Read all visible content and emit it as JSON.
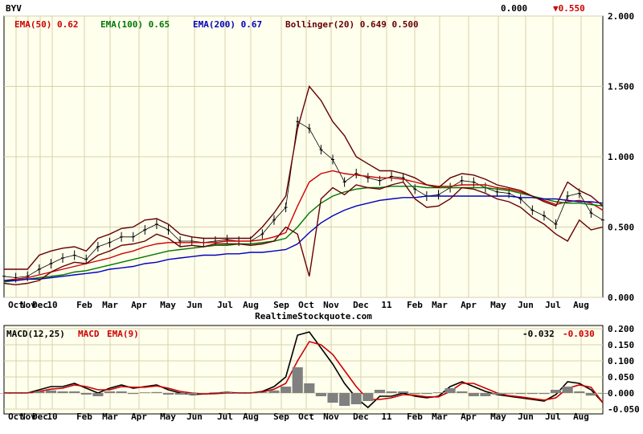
{
  "chart_data": [
    {
      "type": "line",
      "title": "BYV",
      "top_right": {
        "value": "0.000",
        "change": "▼0.550",
        "change_color": "#cc0000"
      },
      "legend": [
        {
          "label": "EMA(50) 0.62",
          "color": "#cc0000"
        },
        {
          "label": "EMA(100) 0.65",
          "color": "#007700"
        },
        {
          "label": "EMA(200) 0.67",
          "color": "#0000bb"
        },
        {
          "label": "Bollinger(20) 0.649 0.500",
          "color": "#660000"
        }
      ],
      "watermark": "RealtimeStockquote.com",
      "ylim": [
        0,
        2
      ],
      "yticks": [
        "2.000",
        "1.500",
        "1.000",
        "0.500",
        "0.000"
      ],
      "xticks": [
        "Oct",
        "Nov",
        "Dec",
        "10",
        "Feb",
        "Mar",
        "Apr",
        "May",
        "Jun",
        "Jul",
        "Aug",
        "Sep",
        "Oct",
        "Nov",
        "Dec",
        "11",
        "Feb",
        "Mar",
        "Apr",
        "May",
        "Jun",
        "Jul",
        "Aug"
      ],
      "x": [
        0,
        2,
        4,
        6,
        8,
        10,
        12,
        14,
        16,
        18,
        20,
        22,
        24,
        26,
        28,
        30,
        32,
        34,
        36,
        38,
        40,
        42,
        44,
        46,
        48,
        50,
        52,
        54,
        56,
        58,
        60,
        62,
        64,
        66,
        68,
        70,
        72,
        74,
        76,
        78,
        80,
        82,
        84,
        86,
        88,
        90,
        92,
        94,
        96,
        98,
        100,
        102
      ],
      "series": [
        {
          "role": "price",
          "color": "#000000",
          "values": [
            0.15,
            0.14,
            0.15,
            0.2,
            0.24,
            0.28,
            0.3,
            0.27,
            0.36,
            0.39,
            0.43,
            0.43,
            0.48,
            0.52,
            0.48,
            0.4,
            0.4,
            0.39,
            0.4,
            0.41,
            0.4,
            0.4,
            0.45,
            0.55,
            0.64,
            1.25,
            1.2,
            1.05,
            0.98,
            0.82,
            0.88,
            0.85,
            0.83,
            0.86,
            0.85,
            0.77,
            0.72,
            0.73,
            0.78,
            0.83,
            0.82,
            0.78,
            0.75,
            0.74,
            0.7,
            0.62,
            0.58,
            0.52,
            0.72,
            0.74,
            0.6,
            0.55
          ]
        },
        {
          "name": "EMA(50)",
          "color": "#cc0000",
          "values": [
            0.12,
            0.13,
            0.14,
            0.16,
            0.18,
            0.2,
            0.22,
            0.24,
            0.26,
            0.28,
            0.31,
            0.33,
            0.36,
            0.38,
            0.39,
            0.39,
            0.39,
            0.39,
            0.39,
            0.4,
            0.4,
            0.4,
            0.41,
            0.43,
            0.46,
            0.65,
            0.82,
            0.88,
            0.9,
            0.88,
            0.87,
            0.86,
            0.85,
            0.85,
            0.84,
            0.82,
            0.8,
            0.79,
            0.79,
            0.8,
            0.8,
            0.8,
            0.78,
            0.77,
            0.75,
            0.72,
            0.69,
            0.66,
            0.68,
            0.69,
            0.67,
            0.62
          ]
        },
        {
          "name": "EMA(100)",
          "color": "#007700",
          "values": [
            0.11,
            0.12,
            0.13,
            0.14,
            0.15,
            0.16,
            0.18,
            0.19,
            0.21,
            0.23,
            0.25,
            0.27,
            0.29,
            0.31,
            0.33,
            0.34,
            0.35,
            0.36,
            0.37,
            0.37,
            0.38,
            0.38,
            0.39,
            0.4,
            0.42,
            0.5,
            0.6,
            0.67,
            0.72,
            0.75,
            0.77,
            0.78,
            0.78,
            0.79,
            0.79,
            0.79,
            0.78,
            0.78,
            0.78,
            0.78,
            0.78,
            0.78,
            0.77,
            0.76,
            0.74,
            0.72,
            0.7,
            0.68,
            0.67,
            0.67,
            0.66,
            0.65
          ]
        },
        {
          "name": "EMA(200)",
          "color": "#0000bb",
          "values": [
            0.12,
            0.12,
            0.13,
            0.13,
            0.14,
            0.15,
            0.16,
            0.17,
            0.18,
            0.2,
            0.21,
            0.22,
            0.24,
            0.25,
            0.27,
            0.28,
            0.29,
            0.3,
            0.3,
            0.31,
            0.31,
            0.32,
            0.32,
            0.33,
            0.34,
            0.38,
            0.46,
            0.53,
            0.58,
            0.62,
            0.65,
            0.67,
            0.69,
            0.7,
            0.71,
            0.71,
            0.72,
            0.72,
            0.72,
            0.72,
            0.72,
            0.72,
            0.72,
            0.72,
            0.71,
            0.71,
            0.7,
            0.7,
            0.69,
            0.68,
            0.68,
            0.67
          ]
        },
        {
          "name": "Bollinger upper",
          "color": "#660000",
          "values": [
            0.2,
            0.2,
            0.2,
            0.3,
            0.33,
            0.35,
            0.36,
            0.33,
            0.42,
            0.45,
            0.49,
            0.5,
            0.55,
            0.56,
            0.52,
            0.45,
            0.43,
            0.42,
            0.42,
            0.42,
            0.42,
            0.42,
            0.5,
            0.6,
            0.72,
            1.2,
            1.5,
            1.4,
            1.25,
            1.15,
            1.0,
            0.95,
            0.9,
            0.9,
            0.88,
            0.85,
            0.8,
            0.78,
            0.85,
            0.88,
            0.87,
            0.84,
            0.8,
            0.78,
            0.76,
            0.72,
            0.68,
            0.65,
            0.82,
            0.76,
            0.72,
            0.65
          ]
        },
        {
          "name": "Bollinger lower",
          "color": "#660000",
          "values": [
            0.1,
            0.09,
            0.1,
            0.12,
            0.18,
            0.22,
            0.25,
            0.24,
            0.3,
            0.33,
            0.37,
            0.38,
            0.4,
            0.45,
            0.42,
            0.36,
            0.37,
            0.36,
            0.38,
            0.38,
            0.38,
            0.37,
            0.38,
            0.4,
            0.5,
            0.45,
            0.15,
            0.7,
            0.78,
            0.73,
            0.8,
            0.78,
            0.77,
            0.8,
            0.82,
            0.7,
            0.64,
            0.65,
            0.7,
            0.78,
            0.77,
            0.74,
            0.7,
            0.68,
            0.64,
            0.57,
            0.52,
            0.45,
            0.4,
            0.55,
            0.48,
            0.5
          ]
        }
      ]
    },
    {
      "type": "line",
      "title": "MACD(12,25)",
      "legend": [
        {
          "label": "MACD",
          "color": "#000000"
        },
        {
          "label": "EMA(9)",
          "color": "#cc0000"
        }
      ],
      "top_right": {
        "value": "-0.032",
        "change": "-0.030",
        "change_color": "#cc0000"
      },
      "ylim": [
        -0.05,
        0.2
      ],
      "yticks": [
        "0.200",
        "0.150",
        "0.100",
        "0.050",
        "0.000",
        "-0.050"
      ],
      "xticks": [
        "Oct",
        "Nov",
        "Dec",
        "10",
        "Feb",
        "Mar",
        "Apr",
        "May",
        "Jun",
        "Jul",
        "Aug",
        "Sep",
        "Oct",
        "Nov",
        "Dec",
        "11",
        "Feb",
        "Mar",
        "Apr",
        "May",
        "Jun",
        "Jul",
        "Aug"
      ],
      "x": [
        0,
        2,
        4,
        6,
        8,
        10,
        12,
        14,
        16,
        18,
        20,
        22,
        24,
        26,
        28,
        30,
        32,
        34,
        36,
        38,
        40,
        42,
        44,
        46,
        48,
        50,
        52,
        54,
        56,
        58,
        60,
        62,
        64,
        66,
        68,
        70,
        72,
        74,
        76,
        78,
        80,
        82,
        84,
        86,
        88,
        90,
        92,
        94,
        96,
        98,
        100,
        102
      ],
      "series": [
        {
          "name": "MACD",
          "color": "#000000",
          "values": [
            0.0,
            0.0,
            0.0,
            0.01,
            0.02,
            0.02,
            0.03,
            0.015,
            0.0,
            0.015,
            0.025,
            0.015,
            0.02,
            0.025,
            0.01,
            0.0,
            -0.005,
            -0.003,
            0.0,
            0.002,
            0.0,
            0.0,
            0.005,
            0.02,
            0.05,
            0.18,
            0.19,
            0.14,
            0.09,
            0.03,
            -0.015,
            -0.045,
            -0.01,
            -0.01,
            0.0,
            -0.01,
            -0.015,
            -0.01,
            0.02,
            0.035,
            0.02,
            0.005,
            -0.005,
            -0.01,
            -0.015,
            -0.02,
            -0.025,
            -0.005,
            0.035,
            0.03,
            0.01,
            -0.03
          ]
        },
        {
          "name": "EMA(9)",
          "color": "#cc0000",
          "values": [
            0.0,
            0.0,
            0.0,
            0.005,
            0.012,
            0.015,
            0.025,
            0.02,
            0.01,
            0.01,
            0.02,
            0.018,
            0.018,
            0.022,
            0.015,
            0.005,
            0.0,
            -0.003,
            -0.002,
            0.0,
            0.0,
            0.0,
            0.003,
            0.012,
            0.03,
            0.1,
            0.16,
            0.15,
            0.12,
            0.07,
            0.02,
            -0.02,
            -0.02,
            -0.015,
            -0.005,
            -0.007,
            -0.012,
            -0.012,
            0.005,
            0.03,
            0.03,
            0.015,
            0.0,
            -0.008,
            -0.012,
            -0.017,
            -0.022,
            -0.015,
            0.015,
            0.025,
            0.018,
            -0.03
          ]
        },
        {
          "name": "histogram",
          "role": "histogram",
          "color": "#808080",
          "values": [
            0.0,
            0.0,
            0.0,
            0.005,
            0.008,
            0.005,
            0.005,
            -0.005,
            -0.01,
            0.005,
            0.005,
            -0.003,
            0.002,
            0.003,
            -0.005,
            -0.005,
            -0.005,
            0.0,
            0.002,
            0.002,
            0.0,
            0.0,
            0.002,
            0.008,
            0.02,
            0.08,
            0.03,
            -0.01,
            -0.03,
            -0.04,
            -0.035,
            -0.025,
            0.01,
            0.005,
            0.005,
            -0.003,
            -0.003,
            0.002,
            0.015,
            0.005,
            -0.01,
            -0.01,
            -0.005,
            -0.002,
            -0.003,
            -0.003,
            -0.003,
            0.01,
            0.02,
            0.005,
            -0.008,
            -0.002
          ]
        }
      ]
    }
  ]
}
